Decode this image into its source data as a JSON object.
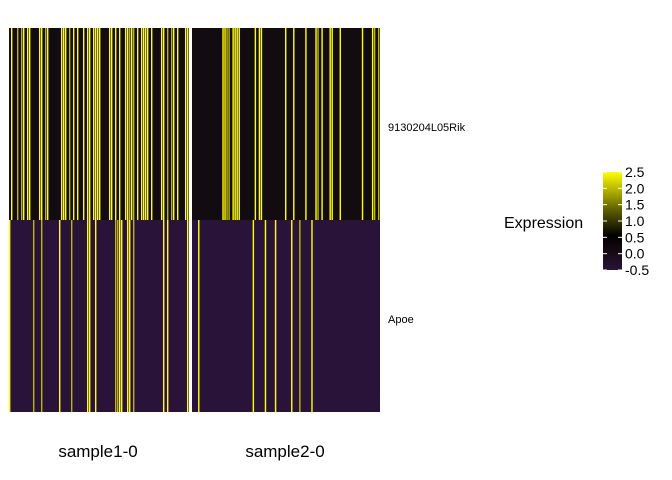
{
  "chart_data": {
    "type": "heatmap",
    "title": "",
    "genes": [
      "9130204L05Rik",
      "Apoe"
    ],
    "groups": [
      "sample1-0",
      "sample2-0"
    ],
    "legend": {
      "title": "Expression",
      "ticks": [
        2.5,
        2.0,
        1.5,
        1.0,
        0.5,
        0.0,
        -0.5
      ],
      "tick_labels": [
        "2.5",
        "2.0",
        "1.5",
        "1.0",
        "0.5",
        "0.0",
        "-0.5"
      ],
      "range": [
        -0.5,
        2.5
      ],
      "colors": [
        "#2a1339",
        "#000000",
        "#ffff00"
      ]
    },
    "cells_per_group": [
      90,
      93
    ],
    "expression_fraction": {
      "9130204L05Rik": {
        "sample1-0": 0.55,
        "sample2-0": 0.3
      },
      "Apoe": {
        "sample1-0": 0.14,
        "sample2-0": 0.1
      }
    }
  }
}
